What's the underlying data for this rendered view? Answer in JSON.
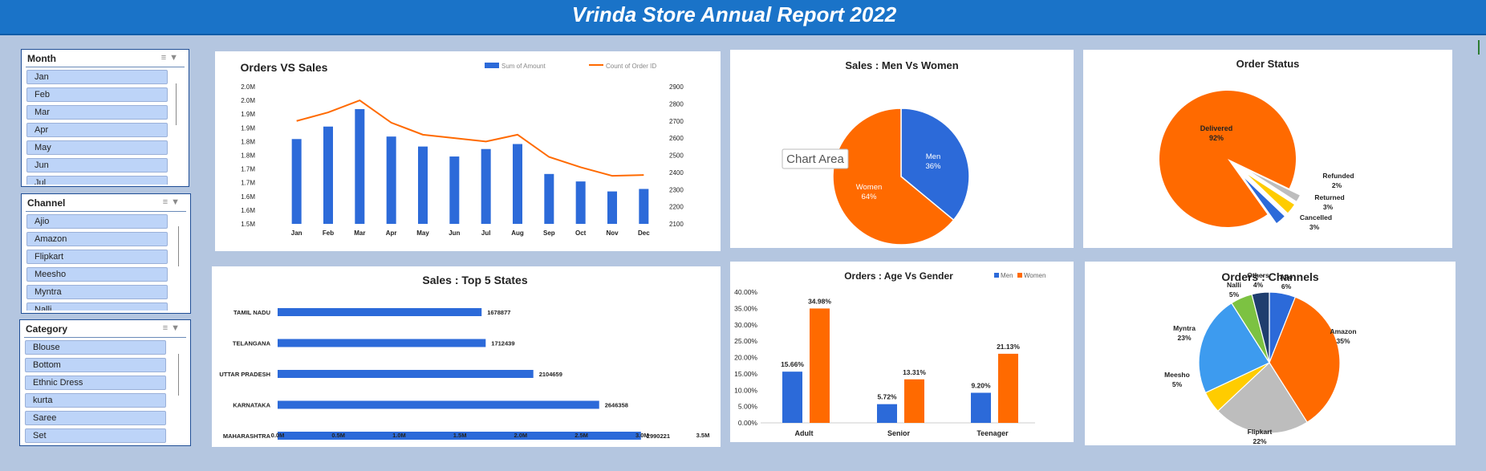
{
  "title": "Vrinda Store Annual Report 2022",
  "colors": {
    "blue": "#2c6ad9",
    "orange": "#ff6a00",
    "gray": "#bdbdbd",
    "yellow": "#ffcc00",
    "lightblue": "#3d9bef",
    "green": "#7cc242",
    "navy": "#1f3e6e"
  },
  "slicers": [
    {
      "title": "Month",
      "items": [
        "Jan",
        "Feb",
        "Mar",
        "Apr",
        "May",
        "Jun",
        "Jul"
      ]
    },
    {
      "title": "Channel",
      "items": [
        "Ajio",
        "Amazon",
        "Flipkart",
        "Meesho",
        "Myntra",
        "Nalli"
      ]
    },
    {
      "title": "Category",
      "items": [
        "Blouse",
        "Bottom",
        "Ethnic Dress",
        "kurta",
        "Saree",
        "Set"
      ]
    }
  ],
  "tooltip": "Chart Area",
  "chart_data": [
    {
      "type": "bar",
      "title": "Orders VS Sales",
      "categories": [
        "Jan",
        "Feb",
        "Mar",
        "Apr",
        "May",
        "Jun",
        "Jul",
        "Aug",
        "Sep",
        "Oct",
        "Nov",
        "Dec"
      ],
      "series": [
        {
          "name": "Sum of Amount",
          "type": "bar",
          "axis": "left",
          "values": [
            1.84,
            1.89,
            1.96,
            1.85,
            1.81,
            1.77,
            1.8,
            1.82,
            1.7,
            1.67,
            1.63,
            1.64
          ]
        },
        {
          "name": "Count of Order ID",
          "type": "line",
          "axis": "right",
          "values": [
            2700,
            2750,
            2820,
            2690,
            2620,
            2600,
            2580,
            2620,
            2490,
            2430,
            2380,
            2385
          ]
        }
      ],
      "y_left_ticks": [
        "1.5M",
        "1.6M",
        "1.6M",
        "1.7M",
        "1.7M",
        "1.8M",
        "1.8M",
        "1.9M",
        "1.9M",
        "2.0M",
        "2.0M"
      ],
      "y_right_ticks": [
        "2100",
        "2200",
        "2300",
        "2400",
        "2500",
        "2600",
        "2700",
        "2800",
        "2900"
      ],
      "ylim_left": [
        1.5,
        2.05
      ],
      "ylim_right": [
        2100,
        2900
      ],
      "legend": "top-right"
    },
    {
      "type": "bar",
      "orientation": "horizontal",
      "title": "Sales : Top 5 States",
      "categories": [
        "TAMIL NADU",
        "TELANGANA",
        "UTTAR PRADESH",
        "KARNATAKA",
        "MAHARASHTRA"
      ],
      "values": [
        1678877,
        1712439,
        2104659,
        2646358,
        2990221
      ],
      "x_ticks": [
        "0.0M",
        "0.5M",
        "1.0M",
        "1.5M",
        "2.0M",
        "2.5M",
        "3.0M",
        "3.5M"
      ],
      "xlim": [
        0,
        3500000
      ]
    },
    {
      "type": "pie",
      "title": "Sales : Men Vs Women",
      "labels": [
        "Men",
        "Women"
      ],
      "values": [
        36,
        64
      ],
      "value_labels": [
        "36%",
        "64%"
      ]
    },
    {
      "type": "pie",
      "title": "Order Status",
      "labels": [
        "Delivered",
        "Refunded",
        "Returned",
        "Cancelled"
      ],
      "values": [
        92,
        2,
        3,
        3
      ],
      "value_labels": [
        "92%",
        "2%",
        "3%",
        "3%"
      ]
    },
    {
      "type": "bar",
      "title": "Orders : Age Vs Gender",
      "categories": [
        "Adult",
        "Senior",
        "Teenager"
      ],
      "series": [
        {
          "name": "Men",
          "values": [
            15.66,
            5.72,
            9.2
          ],
          "labels": [
            "15.66%",
            "5.72%",
            "9.20%"
          ]
        },
        {
          "name": "Women",
          "values": [
            34.98,
            13.31,
            21.13
          ],
          "labels": [
            "34.98%",
            "13.31%",
            "21.13%"
          ]
        }
      ],
      "y_ticks": [
        "0.00%",
        "5.00%",
        "10.00%",
        "15.00%",
        "20.00%",
        "25.00%",
        "30.00%",
        "35.00%",
        "40.00%"
      ],
      "ylim": [
        0,
        40
      ],
      "legend": "top-right"
    },
    {
      "type": "pie",
      "title": "Orders : Channels",
      "labels": [
        "Ajio",
        "Amazon",
        "Flipkart",
        "Meesho",
        "Myntra",
        "Nalli",
        "Others"
      ],
      "values": [
        6,
        35,
        22,
        5,
        23,
        5,
        4
      ],
      "value_labels": [
        "6%",
        "35%",
        "22%",
        "5%",
        "23%",
        "5%",
        "4%"
      ]
    }
  ]
}
